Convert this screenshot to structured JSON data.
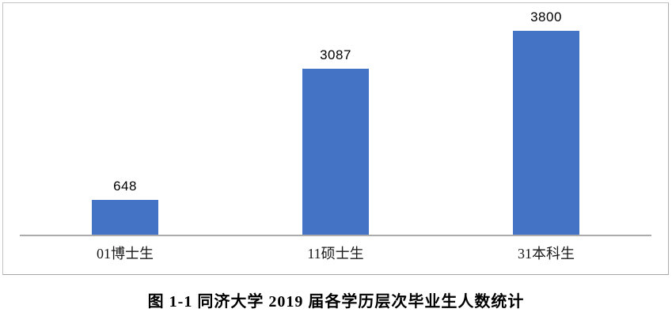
{
  "chart_data": {
    "type": "bar",
    "categories": [
      "01博士生",
      "11硕士生",
      "31本科生"
    ],
    "values": [
      648,
      3087,
      3800
    ],
    "data_labels": [
      "648",
      "3087",
      "3800"
    ],
    "title": "",
    "xlabel": "",
    "ylabel": "",
    "ylim": [
      0,
      4000
    ],
    "grid": false,
    "legend": "none",
    "bar_color": "#4472C4",
    "axis_line_color": "#ababab",
    "frame_border_color": "#c3c3c3"
  },
  "caption": "图 1-1 同济大学 2019 届各学历层次毕业生人数统计"
}
